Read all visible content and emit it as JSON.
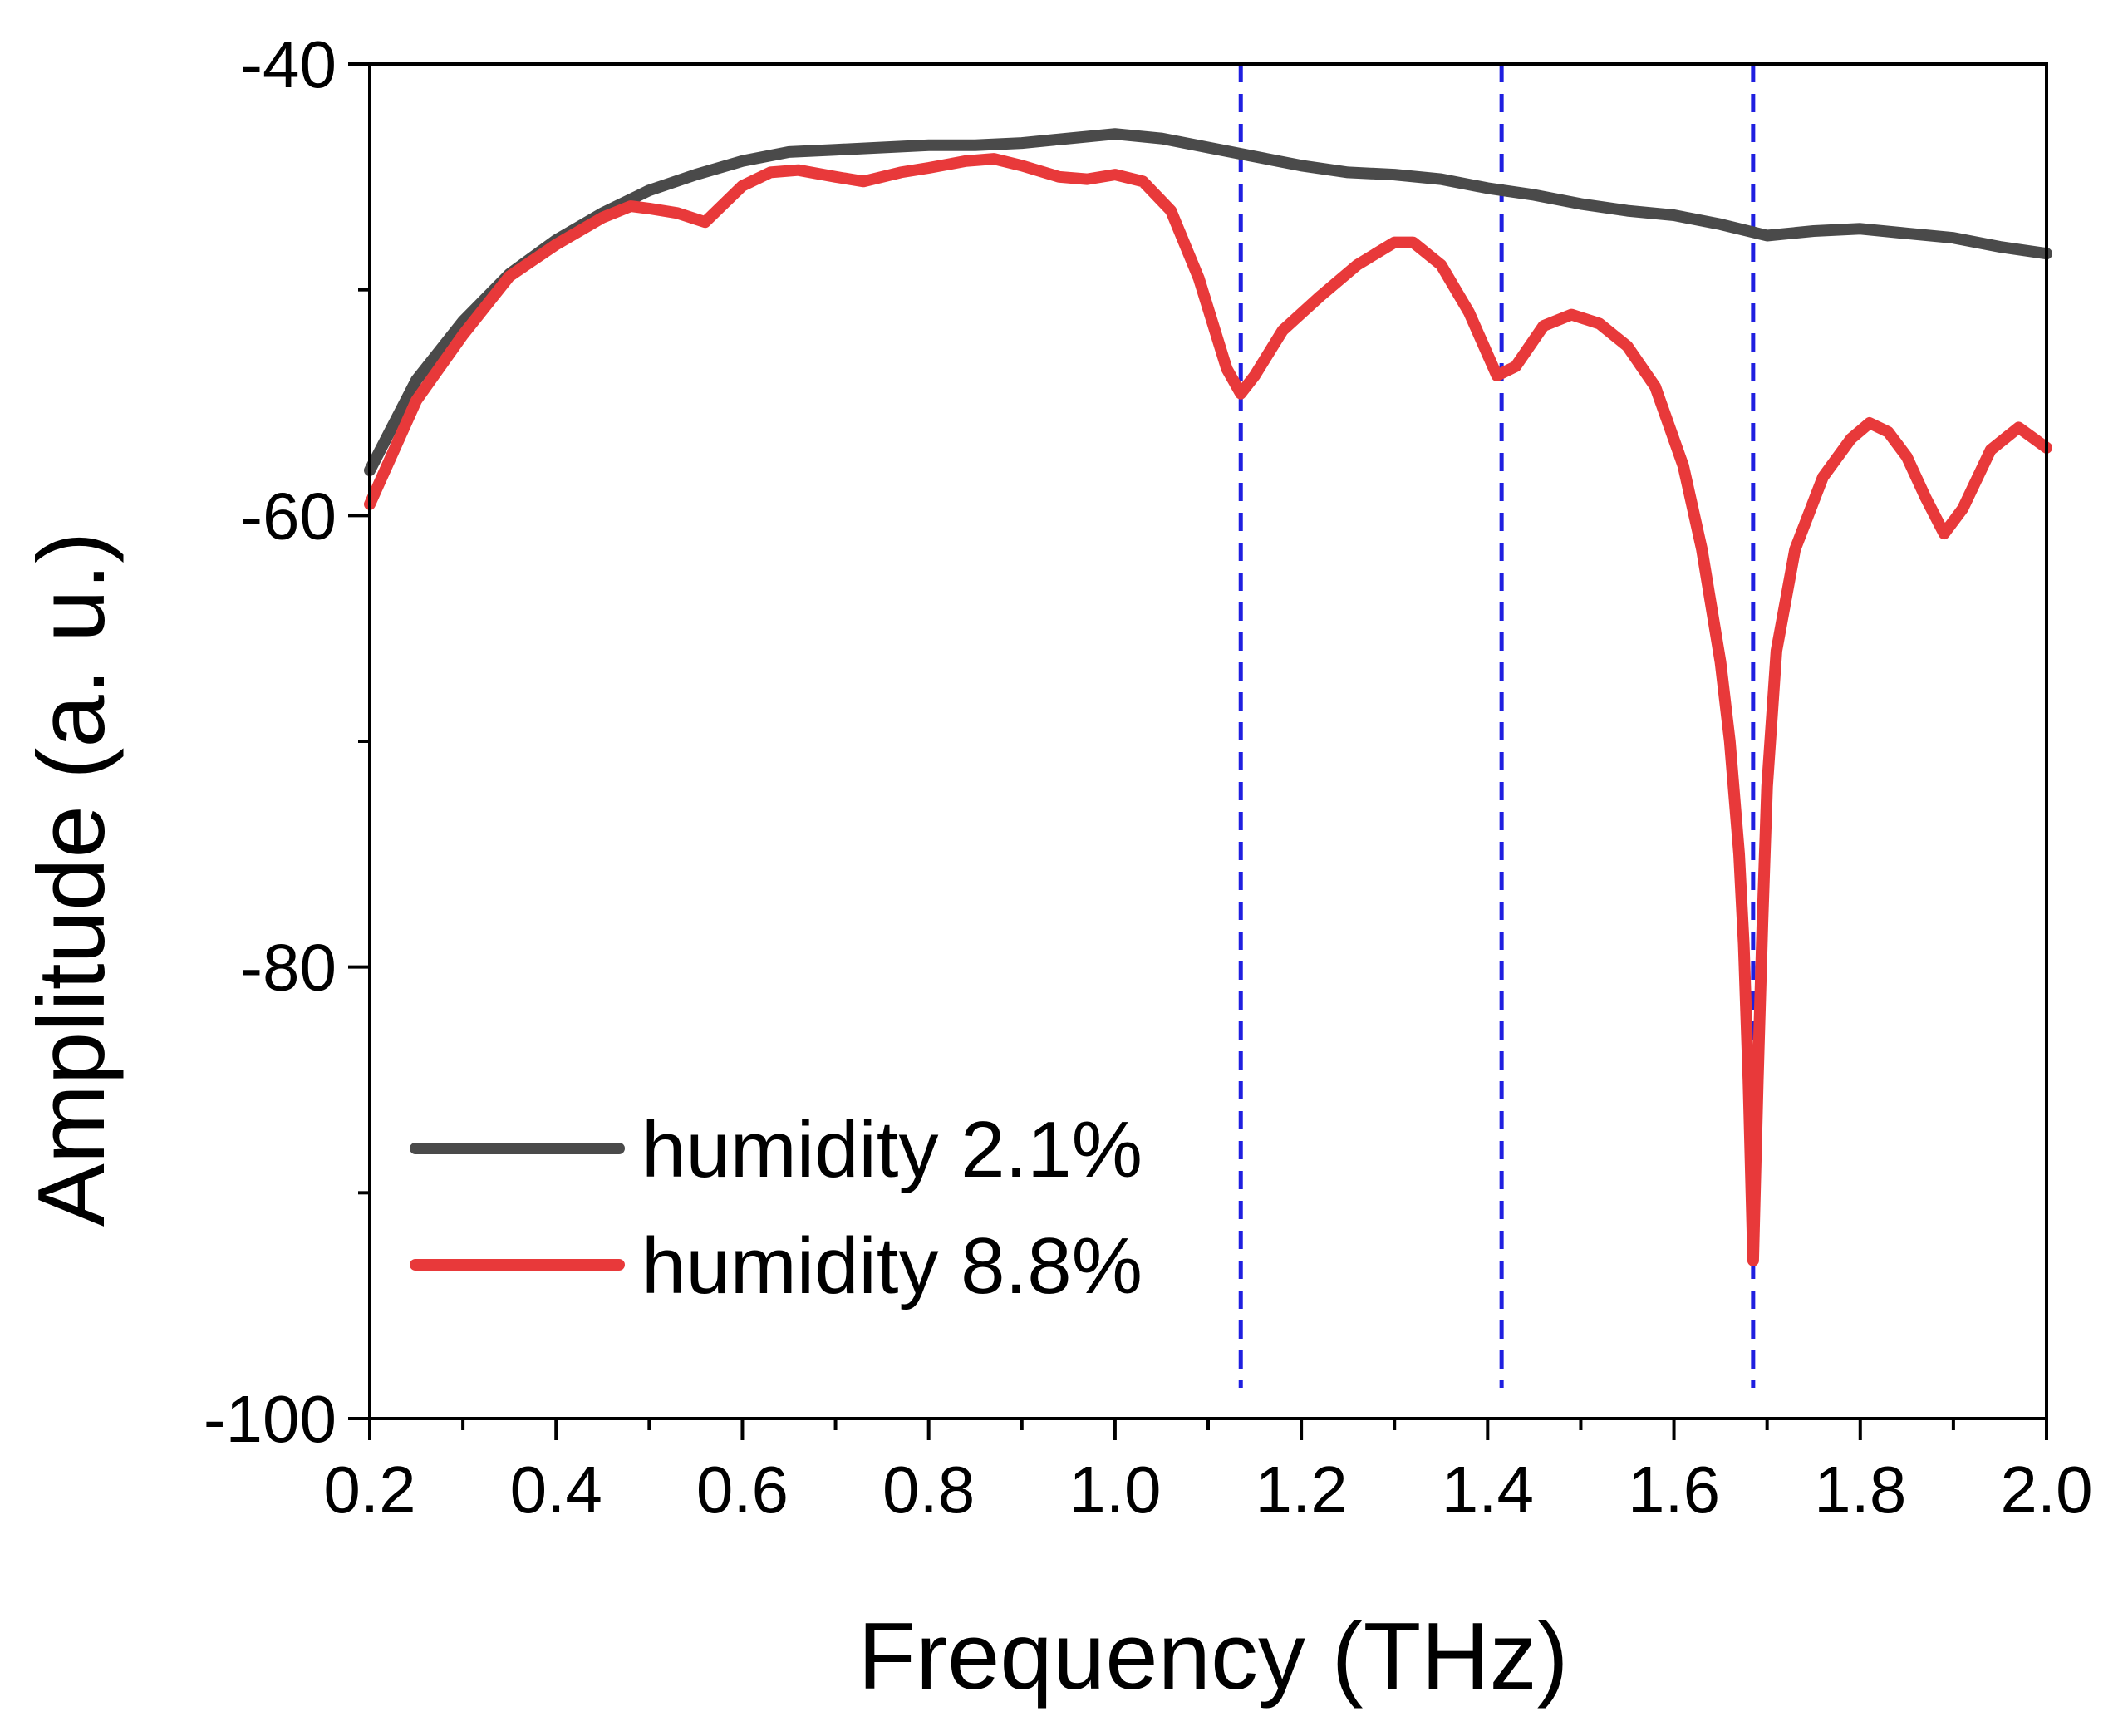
{
  "chart_data": {
    "type": "line",
    "xlabel": "Frequency (THz)",
    "ylabel": "Amplitude (a. u.)",
    "xlim": [
      0.2,
      2.0
    ],
    "ylim": [
      -100,
      -40
    ],
    "xticks": [
      "0.2",
      "0.4",
      "0.6",
      "0.8",
      "1.0",
      "1.2",
      "1.4",
      "1.6",
      "1.8",
      "2.0"
    ],
    "xtick_values": [
      0.2,
      0.4,
      0.6,
      0.8,
      1.0,
      1.2,
      1.4,
      1.6,
      1.8,
      2.0
    ],
    "yticks": [
      "-40",
      "-60",
      "-80",
      "-100"
    ],
    "ytick_values": [
      -40,
      -60,
      -80,
      -100
    ],
    "grid": false,
    "legend_position": "bottom-left",
    "reference_lines": {
      "orientation": "vertical",
      "style": "dashed",
      "color": "#1f1fe0",
      "x": [
        1.135,
        1.415,
        1.685
      ]
    },
    "series": [
      {
        "name": "humidity 2.1%",
        "color": "#4a4a4a",
        "x": [
          0.2,
          0.25,
          0.3,
          0.35,
          0.4,
          0.45,
          0.5,
          0.55,
          0.6,
          0.65,
          0.7,
          0.75,
          0.8,
          0.85,
          0.9,
          0.95,
          1.0,
          1.05,
          1.1,
          1.15,
          1.2,
          1.25,
          1.3,
          1.35,
          1.4,
          1.45,
          1.5,
          1.55,
          1.6,
          1.65,
          1.7,
          1.75,
          1.8,
          1.85,
          1.9,
          1.95,
          2.0
        ],
        "y": [
          -58,
          -54,
          -51.4,
          -49.3,
          -47.8,
          -46.6,
          -45.6,
          -44.9,
          -44.3,
          -43.9,
          -43.8,
          -43.7,
          -43.6,
          -43.6,
          -43.5,
          -43.3,
          -43.1,
          -43.3,
          -43.7,
          -44.1,
          -44.5,
          -44.8,
          -44.9,
          -45.1,
          -45.5,
          -45.8,
          -46.2,
          -46.5,
          -46.7,
          -47.1,
          -47.6,
          -47.4,
          -47.3,
          -47.5,
          -47.7,
          -48.1,
          -48.4
        ]
      },
      {
        "name": "humidity 8.8%",
        "color": "#e8393a",
        "x": [
          0.2,
          0.25,
          0.3,
          0.35,
          0.4,
          0.45,
          0.48,
          0.5,
          0.53,
          0.56,
          0.6,
          0.63,
          0.66,
          0.7,
          0.73,
          0.77,
          0.8,
          0.84,
          0.87,
          0.9,
          0.94,
          0.97,
          1.0,
          1.03,
          1.06,
          1.09,
          1.12,
          1.135,
          1.15,
          1.18,
          1.22,
          1.26,
          1.3,
          1.32,
          1.35,
          1.38,
          1.41,
          1.43,
          1.46,
          1.49,
          1.52,
          1.55,
          1.58,
          1.61,
          1.63,
          1.65,
          1.66,
          1.67,
          1.675,
          1.68,
          1.685,
          1.69,
          1.695,
          1.7,
          1.71,
          1.73,
          1.76,
          1.79,
          1.81,
          1.83,
          1.85,
          1.87,
          1.89,
          1.91,
          1.94,
          1.97,
          2.0
        ],
        "y": [
          -59.5,
          -54.9,
          -52,
          -49.4,
          -48,
          -46.8,
          -46.3,
          -46.4,
          -46.6,
          -47,
          -45.4,
          -44.8,
          -44.7,
          -45,
          -45.2,
          -44.8,
          -44.6,
          -44.3,
          -44.2,
          -44.5,
          -45,
          -45.1,
          -44.9,
          -45.2,
          -46.5,
          -49.5,
          -53.5,
          -54.6,
          -53.8,
          -51.8,
          -50.3,
          -48.9,
          -47.9,
          -47.9,
          -48.9,
          -51,
          -53.8,
          -53.4,
          -51.6,
          -51.1,
          -51.5,
          -52.5,
          -54.3,
          -57.8,
          -61.5,
          -66.5,
          -70,
          -75,
          -79,
          -85,
          -93,
          -85,
          -78,
          -72,
          -66,
          -61.5,
          -58.3,
          -56.6,
          -55.9,
          -56.3,
          -57.4,
          -59.2,
          -60.8,
          -59.7,
          -57.1,
          -56.1,
          -57
        ]
      }
    ]
  }
}
